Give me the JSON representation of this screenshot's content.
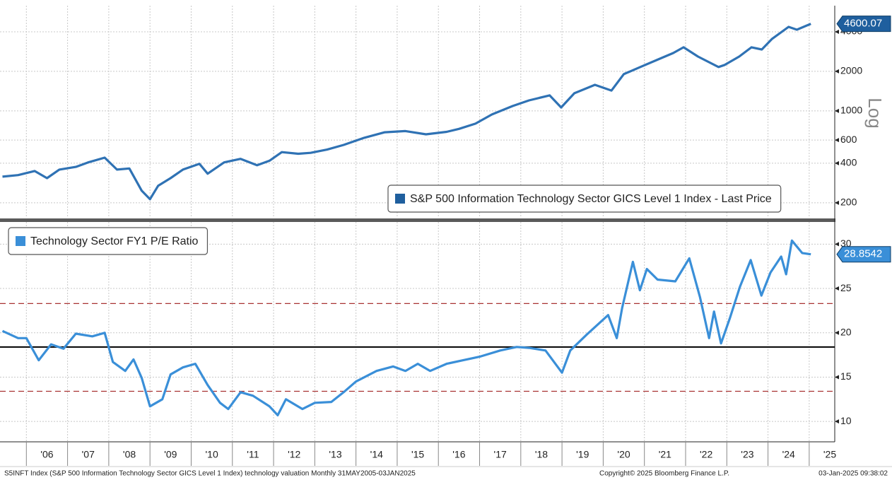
{
  "chart_data": [
    {
      "type": "line",
      "log_scale": true,
      "scale_label": "Log",
      "grid": true,
      "xlim": [
        2005.36,
        2025.62
      ],
      "ylim": [
        154,
        6320
      ],
      "yticks": [
        200,
        400,
        600,
        1000,
        2000,
        4000
      ],
      "series": [
        {
          "name": "S&P 500 Information Technology Sector GICS Level 1 Index - Last Price",
          "color": "#2f72b4",
          "x": [
            2005.42,
            2005.8,
            2006.2,
            2006.5,
            2006.8,
            2007.2,
            2007.5,
            2007.9,
            2008.2,
            2008.5,
            2008.8,
            2009.0,
            2009.2,
            2009.5,
            2009.8,
            2010.2,
            2010.4,
            2010.8,
            2011.2,
            2011.6,
            2011.9,
            2012.2,
            2012.6,
            2012.9,
            2013.3,
            2013.7,
            2014.2,
            2014.7,
            2015.2,
            2015.7,
            2016.2,
            2016.5,
            2016.9,
            2017.3,
            2017.8,
            2018.2,
            2018.7,
            2018.98,
            2019.3,
            2019.8,
            2020.2,
            2020.5,
            2020.9,
            2021.3,
            2021.7,
            2021.95,
            2022.3,
            2022.8,
            2022.95,
            2023.3,
            2023.6,
            2023.85,
            2024.1,
            2024.5,
            2024.7,
            2025.04
          ],
          "values": [
            316,
            325,
            349,
            308,
            358,
            375,
            406,
            441,
            358,
            365,
            247,
            213,
            270,
            308,
            358,
            396,
            333,
            406,
            432,
            386,
            418,
            486,
            472,
            480,
            508,
            551,
            625,
            688,
            703,
            664,
            693,
            730,
            800,
            940,
            1089,
            1202,
            1313,
            1062,
            1363,
            1580,
            1428,
            1905,
            2157,
            2440,
            2758,
            3048,
            2593,
            2157,
            2240,
            2593,
            3048,
            2934,
            3537,
            4360,
            4150,
            4600.07
          ]
        }
      ]
    },
    {
      "type": "line",
      "grid": true,
      "xlim": [
        2005.36,
        2025.62
      ],
      "ylim": [
        7.7,
        32.5
      ],
      "yticks": [
        10,
        15,
        20,
        25,
        30
      ],
      "xticks": [
        {
          "value": 2006,
          "label": "'06"
        },
        {
          "value": 2007,
          "label": "'07"
        },
        {
          "value": 2008,
          "label": "'08"
        },
        {
          "value": 2009,
          "label": "'09"
        },
        {
          "value": 2010,
          "label": "'10"
        },
        {
          "value": 2011,
          "label": "'11"
        },
        {
          "value": 2012,
          "label": "'12"
        },
        {
          "value": 2013,
          "label": "'13"
        },
        {
          "value": 2014,
          "label": "'14"
        },
        {
          "value": 2015,
          "label": "'15"
        },
        {
          "value": 2016,
          "label": "'16"
        },
        {
          "value": 2017,
          "label": "'17"
        },
        {
          "value": 2018,
          "label": "'18"
        },
        {
          "value": 2019,
          "label": "'19"
        },
        {
          "value": 2020,
          "label": "'20"
        },
        {
          "value": 2021,
          "label": "'21"
        },
        {
          "value": 2022,
          "label": "'22"
        },
        {
          "value": 2023,
          "label": "'23"
        },
        {
          "value": 2024,
          "label": "'24"
        },
        {
          "value": 2025,
          "label": "'25"
        }
      ],
      "reference_lines": [
        {
          "value": 18.4,
          "color": "#000000",
          "dash": false
        },
        {
          "value": 23.3,
          "color": "#a83232",
          "dash": true
        },
        {
          "value": 13.4,
          "color": "#a83232",
          "dash": true
        }
      ],
      "series": [
        {
          "name": "Technology Sector FY1 P/E Ratio",
          "color": "#3a8fd8",
          "x": [
            2005.42,
            2005.8,
            2006.0,
            2006.3,
            2006.6,
            2006.9,
            2007.2,
            2007.6,
            2007.9,
            2008.1,
            2008.4,
            2008.6,
            2008.8,
            2009.0,
            2009.3,
            2009.5,
            2009.8,
            2010.1,
            2010.4,
            2010.7,
            2010.9,
            2011.2,
            2011.5,
            2011.9,
            2012.1,
            2012.3,
            2012.7,
            2013.0,
            2013.4,
            2013.7,
            2014.0,
            2014.5,
            2014.9,
            2015.2,
            2015.5,
            2015.8,
            2016.2,
            2016.6,
            2017.0,
            2017.5,
            2017.9,
            2018.2,
            2018.6,
            2019.0,
            2019.2,
            2019.6,
            2020.12,
            2020.33,
            2020.46,
            2020.72,
            2020.89,
            2021.06,
            2021.32,
            2021.75,
            2022.09,
            2022.35,
            2022.57,
            2022.69,
            2022.86,
            2023.07,
            2023.32,
            2023.58,
            2023.84,
            2024.06,
            2024.32,
            2024.44,
            2024.58,
            2024.83,
            2025.04
          ],
          "values": [
            20.2,
            19.4,
            19.4,
            16.9,
            18.7,
            18.2,
            19.9,
            19.6,
            20.0,
            16.7,
            15.7,
            17.0,
            14.9,
            11.7,
            12.5,
            15.3,
            16.1,
            16.5,
            14.1,
            12.1,
            11.4,
            13.3,
            12.9,
            11.7,
            10.7,
            12.5,
            11.4,
            12.1,
            12.2,
            13.3,
            14.5,
            15.7,
            16.2,
            15.7,
            16.5,
            15.7,
            16.5,
            16.9,
            17.3,
            18.0,
            18.4,
            18.3,
            18.0,
            15.5,
            18.0,
            19.8,
            22.0,
            19.4,
            22.8,
            28.0,
            24.8,
            27.2,
            26.0,
            25.8,
            28.4,
            24.0,
            19.4,
            22.4,
            18.8,
            21.6,
            25.2,
            28.2,
            24.2,
            26.8,
            28.6,
            26.6,
            30.4,
            29.0,
            28.8542
          ]
        }
      ]
    }
  ],
  "footer": {
    "left": "S5INFT Index (S&P 500 Information Technology Sector GICS Level 1 Index) technology valuation  Monthly 31MAY2005-03JAN2025",
    "center": "Copyright© 2025 Bloomberg Finance L.P.",
    "right": "03-Jan-2025 09:38:02"
  }
}
